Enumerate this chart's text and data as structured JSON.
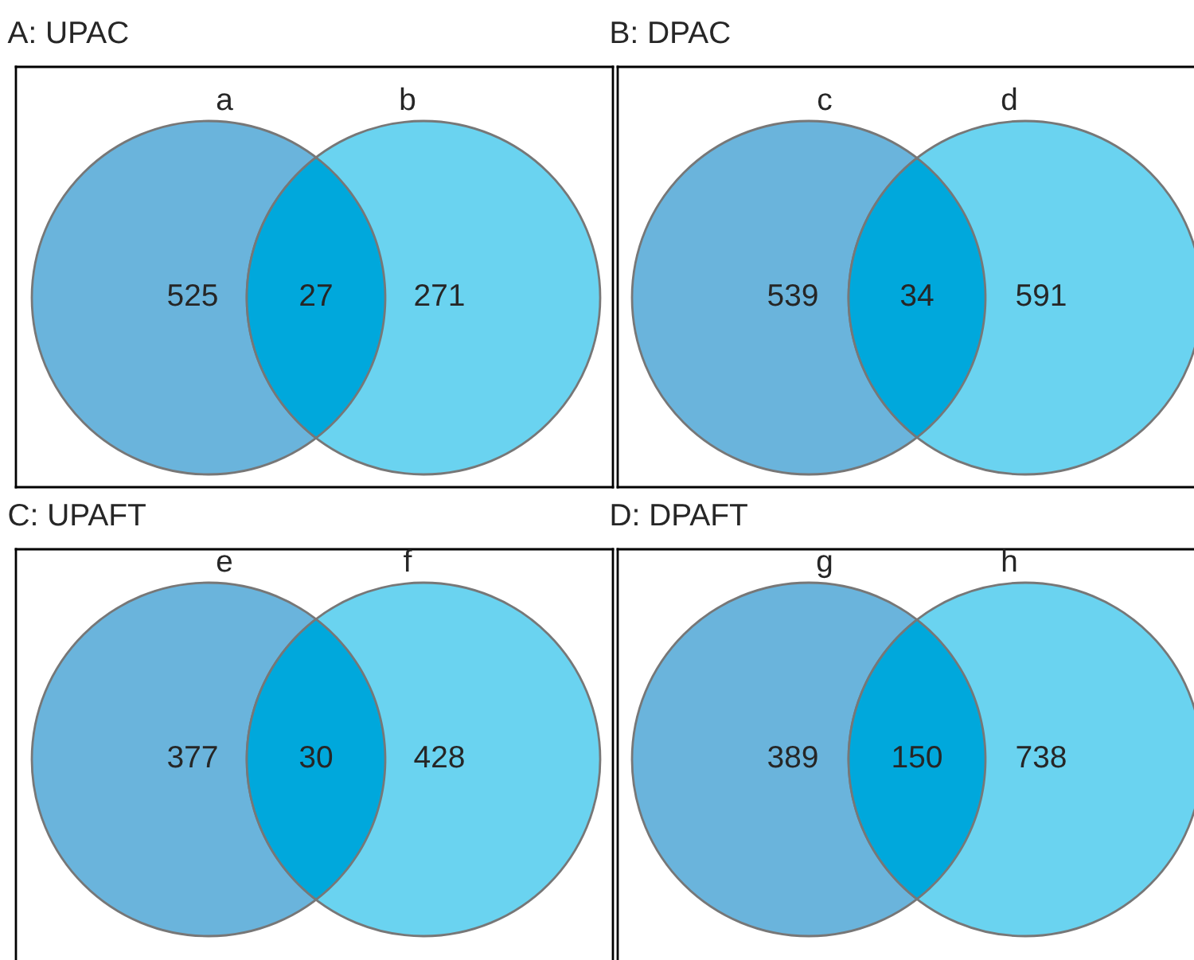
{
  "chart_data": [
    {
      "type": "other",
      "data_labels": true,
      "title": "A: UPAC",
      "categories": [
        "a",
        null,
        "b"
      ],
      "values": [
        525,
        27,
        271
      ],
      "colors": [
        "#6ab4dc",
        "#00a8dc",
        "#6ad3f0"
      ]
    },
    {
      "type": "other",
      "data_labels": true,
      "title": "B: DPAC",
      "categories": [
        "c",
        null,
        "d"
      ],
      "values": [
        539,
        34,
        591
      ],
      "colors": [
        "#6ab4dc",
        "#00a8dc",
        "#6ad3f0"
      ]
    },
    {
      "type": "other",
      "data_labels": true,
      "title": "C: UPAFT",
      "categories": [
        "e",
        null,
        "f"
      ],
      "values": [
        377,
        30,
        428
      ],
      "colors": [
        "#6ab4dc",
        "#00a8dc",
        "#6ad3f0"
      ]
    },
    {
      "type": "other",
      "data_labels": true,
      "title": "D: DPAFT",
      "categories": [
        "g",
        null,
        "h"
      ],
      "values": [
        389,
        150,
        738
      ],
      "colors": [
        "#6ab4dc",
        "#00a8dc",
        "#6ad3f0"
      ]
    }
  ]
}
